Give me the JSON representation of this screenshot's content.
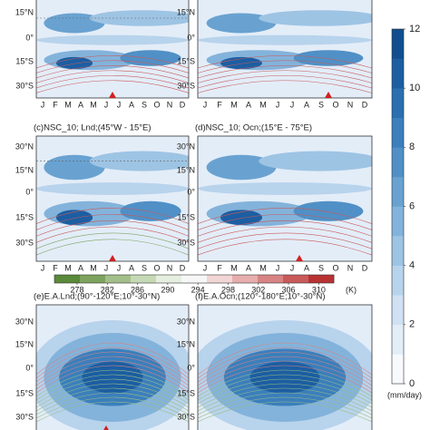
{
  "chart_data": {
    "type": "contour-panels",
    "months": [
      "J",
      "F",
      "M",
      "A",
      "M",
      "J",
      "J",
      "A",
      "S",
      "O",
      "N",
      "D"
    ],
    "panels": [
      {
        "title": null,
        "lat_labels": [
          "15°N",
          "0°",
          "15°S",
          "30°S"
        ]
      },
      {
        "title": null,
        "lat_labels": [
          "15°N",
          "0°",
          "15°S",
          "30°S"
        ]
      },
      {
        "title": "(c)NSC_10; Lnd;(45°W - 15°E)",
        "lat_labels": [
          "30°N",
          "15°N",
          "0°",
          "15°S",
          "30°S"
        ]
      },
      {
        "title": "(d)NSC_10; Ocn;(15°E - 75°E)",
        "lat_labels": [
          "30°N",
          "15°N",
          "0°",
          "15°S",
          "30°S"
        ]
      },
      {
        "title": "(e)E.A.Lnd;(90°-120°E;10°-30°N)",
        "lat_labels": [
          "30°N",
          "15°N",
          "0°",
          "15°S",
          "30°S"
        ]
      },
      {
        "title": "(f)E.A.Ocn;(120°-180°E;10°-30°N)",
        "lat_labels": [
          "30°N",
          "15°N",
          "0°",
          "15°S",
          "30°S"
        ]
      }
    ],
    "temperature_colorbar": {
      "ticks": [
        278,
        282,
        286,
        290,
        294,
        298,
        302,
        306,
        310
      ],
      "lim": [
        275,
        312
      ],
      "unit": "(K)",
      "colors": [
        "#5a8a3a",
        "#7ea35e",
        "#a3bf8a",
        "#c6d9b6",
        "#e6eedf",
        "#f7f7f7",
        "#f2d6d6",
        "#e6aeae",
        "#d88484",
        "#c95a5a",
        "#b83232"
      ]
    },
    "precip_colorbar": {
      "ticks": [
        0,
        2,
        4,
        6,
        8,
        10,
        12
      ],
      "lim": [
        0,
        12
      ],
      "unit": "(mm/day)",
      "colors": [
        "#f7f9fd",
        "#e3edf8",
        "#cfe1f2",
        "#b8d3ec",
        "#9ec4e4",
        "#83b3db",
        "#69a2d1",
        "#5090c6",
        "#3b7fbc",
        "#2a6fb0",
        "#1c5ea2",
        "#114e8f"
      ]
    }
  }
}
